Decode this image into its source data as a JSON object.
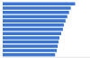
{
  "chart_data": {
    "type": "bar",
    "orientation": "horizontal",
    "categories": [
      null,
      null,
      null,
      null,
      null,
      null,
      null,
      null,
      null,
      null,
      null,
      null,
      null
    ],
    "values": [
      83,
      78,
      76,
      74,
      72,
      70,
      69,
      67,
      65,
      64,
      63,
      62,
      60
    ],
    "color": "#3a75d4",
    "xlim": [
      0,
      100
    ],
    "xticks": [],
    "grid": false,
    "tick_labels": false
  }
}
